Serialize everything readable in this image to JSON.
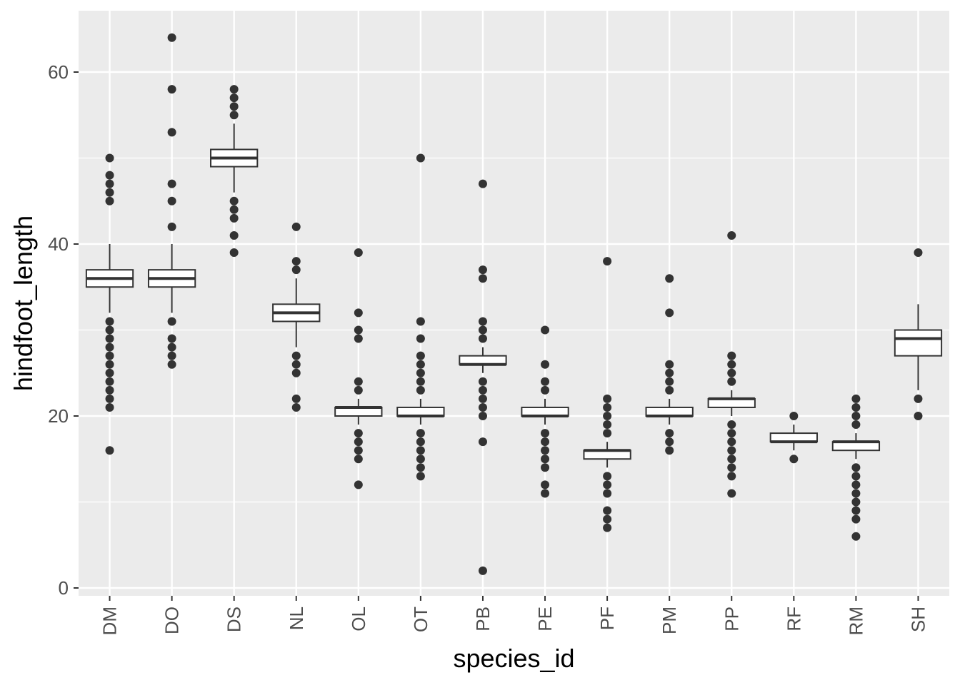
{
  "chart_data": {
    "type": "boxplot",
    "xlabel": "species_id",
    "ylabel": "hindfoot_length",
    "ylim": [
      -2.5,
      67
    ],
    "yticks": [
      0,
      20,
      40,
      60
    ],
    "yminor": [
      10,
      30,
      50
    ],
    "grid": true,
    "colors": {
      "panel": "#ebebeb",
      "grid": "#ffffff",
      "box_line": "#333333",
      "box_fill": "#ffffff",
      "outlier": "#333333"
    },
    "categories": [
      "DM",
      "DO",
      "DS",
      "NL",
      "OL",
      "OT",
      "PB",
      "PE",
      "PF",
      "PM",
      "PP",
      "RF",
      "RM",
      "SH"
    ],
    "boxes": [
      {
        "category": "DM",
        "q1": 35,
        "median": 36,
        "q3": 37,
        "whisker_low": 32,
        "whisker_high": 40,
        "outliers": [
          50,
          48,
          47,
          46,
          45,
          31,
          30,
          29,
          28,
          27,
          26,
          25,
          24,
          23,
          22,
          21,
          16
        ]
      },
      {
        "category": "DO",
        "q1": 35,
        "median": 36,
        "q3": 37,
        "whisker_low": 32,
        "whisker_high": 40,
        "outliers": [
          64,
          58,
          53,
          47,
          45,
          42,
          31,
          29,
          28,
          27,
          26
        ]
      },
      {
        "category": "DS",
        "q1": 49,
        "median": 50,
        "q3": 51,
        "whisker_low": 46,
        "whisker_high": 54,
        "outliers": [
          58,
          57,
          56,
          55,
          45,
          44,
          43,
          41,
          39
        ]
      },
      {
        "category": "NL",
        "q1": 31,
        "median": 32,
        "q3": 33,
        "whisker_low": 28,
        "whisker_high": 36,
        "outliers": [
          42,
          38,
          37,
          27,
          26,
          25,
          22,
          21
        ]
      },
      {
        "category": "OL",
        "q1": 20,
        "median": 21,
        "q3": 21,
        "whisker_low": 19,
        "whisker_high": 22,
        "outliers": [
          39,
          32,
          30,
          29,
          24,
          23,
          18,
          17,
          16,
          15,
          12
        ]
      },
      {
        "category": "OT",
        "q1": 20,
        "median": 20,
        "q3": 21,
        "whisker_low": 19,
        "whisker_high": 22,
        "outliers": [
          50,
          31,
          29,
          27,
          26,
          25,
          24,
          23,
          18,
          17,
          16,
          15,
          14,
          13
        ]
      },
      {
        "category": "PB",
        "q1": 26,
        "median": 26,
        "q3": 27,
        "whisker_low": 25,
        "whisker_high": 28,
        "outliers": [
          47,
          37,
          36,
          31,
          30,
          29,
          24,
          23,
          22,
          21,
          20,
          17,
          2
        ]
      },
      {
        "category": "PE",
        "q1": 20,
        "median": 20,
        "q3": 21,
        "whisker_low": 19,
        "whisker_high": 22,
        "outliers": [
          30,
          26,
          24,
          23,
          18,
          17,
          16,
          15,
          14,
          12,
          11
        ]
      },
      {
        "category": "PF",
        "q1": 15,
        "median": 16,
        "q3": 16,
        "whisker_low": 14,
        "whisker_high": 17,
        "outliers": [
          38,
          22,
          21,
          20,
          19,
          18,
          13,
          12,
          11,
          9,
          8,
          7
        ]
      },
      {
        "category": "PM",
        "q1": 20,
        "median": 20,
        "q3": 21,
        "whisker_low": 19,
        "whisker_high": 22,
        "outliers": [
          36,
          32,
          26,
          25,
          24,
          23,
          18,
          17,
          16
        ]
      },
      {
        "category": "PP",
        "q1": 21,
        "median": 22,
        "q3": 22,
        "whisker_low": 20,
        "whisker_high": 23,
        "outliers": [
          41,
          27,
          26,
          25,
          24,
          19,
          18,
          17,
          16,
          15,
          14,
          13,
          11
        ]
      },
      {
        "category": "RF",
        "q1": 17,
        "median": 17,
        "q3": 18,
        "whisker_low": 16,
        "whisker_high": 19,
        "outliers": [
          20,
          15
        ]
      },
      {
        "category": "RM",
        "q1": 16,
        "median": 17,
        "q3": 17,
        "whisker_low": 15,
        "whisker_high": 18,
        "outliers": [
          22,
          21,
          20,
          19,
          14,
          13,
          12,
          11,
          10,
          9,
          8,
          6
        ]
      },
      {
        "category": "SH",
        "q1": 27,
        "median": 29,
        "q3": 30,
        "whisker_low": 23,
        "whisker_high": 33,
        "outliers": [
          39,
          22,
          20
        ]
      }
    ]
  }
}
